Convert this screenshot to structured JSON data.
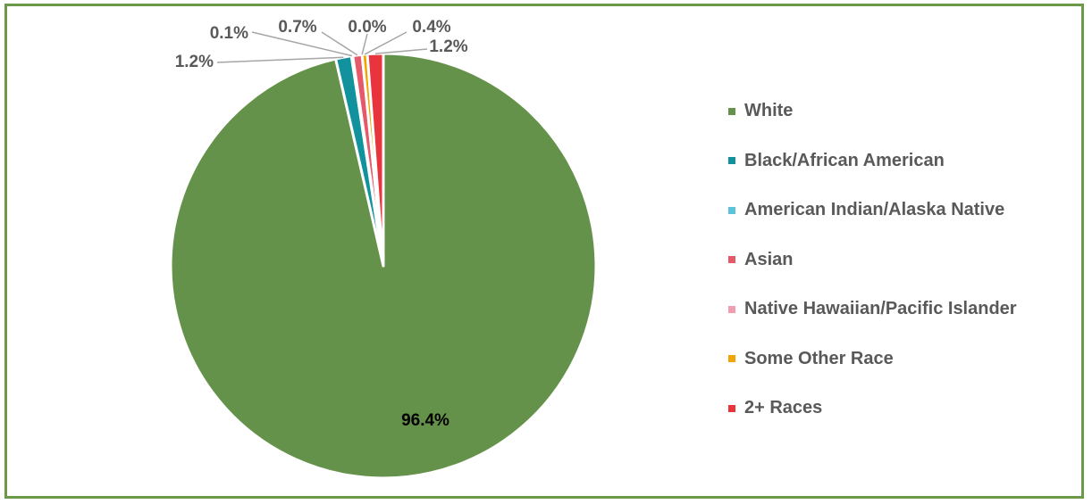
{
  "chart_data": {
    "type": "pie",
    "title": "",
    "legend_position": "right",
    "slices": [
      {
        "name": "White",
        "value": 96.4,
        "label": "96.4%",
        "color": "#65924a"
      },
      {
        "name": "Black/African American",
        "value": 1.2,
        "label": "1.2%",
        "color": "#12929c"
      },
      {
        "name": "American Indian/Alaska Native",
        "value": 0.1,
        "label": "0.1%",
        "color": "#5bc4dc"
      },
      {
        "name": "Asian",
        "value": 0.7,
        "label": "0.7%",
        "color": "#e5596b"
      },
      {
        "name": "Native Hawaiian/Pacific Islander",
        "value": 0.0,
        "label": "0.0%",
        "color": "#f29cb0"
      },
      {
        "name": "Some Other Race",
        "value": 0.4,
        "label": "0.4%",
        "color": "#f2a500"
      },
      {
        "name": "2+ Races",
        "value": 1.2,
        "label": "1.2%",
        "color": "#e8343c"
      }
    ]
  }
}
